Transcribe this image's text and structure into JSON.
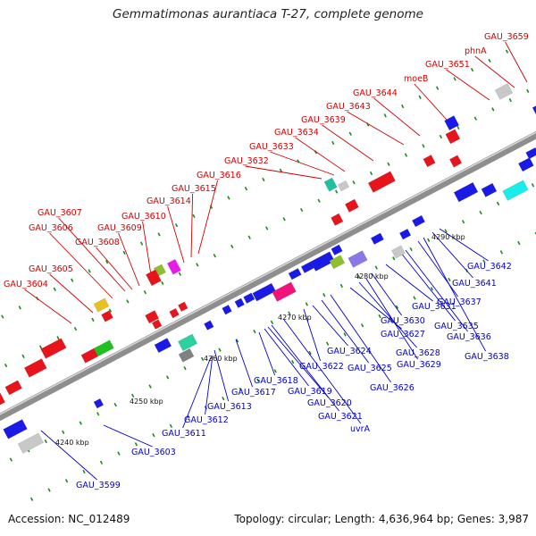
{
  "title": "Gemmatimonas aurantiaca T-27, complete genome",
  "footer": {
    "accession": "Accession: NC_012489",
    "summary": "Topology: circular; Length: 4,636,964 bp; Genes: 3,987"
  },
  "colors": {
    "backbone": "#9a9a9a",
    "forward_gene": "#e8141b",
    "reverse_gene": "#1a1ae6",
    "forward_label": "#d10000",
    "reverse_label": "#0000cc",
    "tick": "#1a8a1a"
  },
  "scale_labels": [
    "4240 kbp",
    "4250 kbp",
    "4260 kbp",
    "4270 kbp",
    "4280 kbp",
    "4290 kbp"
  ],
  "labels_top": [
    "GAU_3604",
    "GAU_3605",
    "GAU_3606",
    "GAU_3607",
    "GAU_3608",
    "GAU_3609",
    "GAU_3610",
    "GAU_3614",
    "GAU_3615",
    "GAU_3616",
    "GAU_3632",
    "GAU_3633",
    "GAU_3634",
    "GAU_3639",
    "GAU_3643",
    "GAU_3644",
    "moeB",
    "GAU_3651",
    "phnA",
    "GAU_3659"
  ],
  "labels_bottom": [
    "GAU_3599",
    "GAU_3603",
    "GAU_3611",
    "GAU_3612",
    "GAU_3613",
    "GAU_3617",
    "GAU_3618",
    "GAU_3619",
    "GAU_3620",
    "GAU_3621",
    "uvrA",
    "GAU_3622",
    "GAU_3624",
    "GAU_3625",
    "GAU_3626",
    "GAU_3627",
    "GAU_3628",
    "GAU_3629",
    "GAU_3630",
    "GAU_3631",
    "GAU_3635",
    "GAU_3636",
    "GAU_3637",
    "GAU_3638",
    "GAU_3641",
    "GAU_3642"
  ]
}
